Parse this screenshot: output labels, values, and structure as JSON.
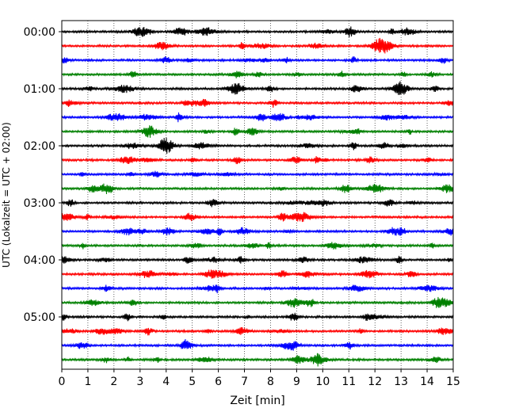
{
  "chart_data": {
    "type": "line",
    "title": "",
    "xlabel": "Zeit  [min]",
    "ylabel": "UTC (Lokalzeit = UTC + 02:00)",
    "xlim": [
      0,
      15
    ],
    "x_ticks": [
      0,
      1,
      2,
      3,
      4,
      5,
      6,
      7,
      8,
      9,
      10,
      11,
      12,
      13,
      14,
      15
    ],
    "x_tick_labels": [
      "0",
      "1",
      "2",
      "3",
      "4",
      "5",
      "6",
      "7",
      "8",
      "9",
      "10",
      "11",
      "12",
      "13",
      "14",
      "15"
    ],
    "y_tick_labels": [
      "00:00",
      "01:00",
      "02:00",
      "03:00",
      "04:00",
      "05:00"
    ],
    "y_tick_rows": [
      0,
      4,
      8,
      12,
      16,
      20
    ],
    "grid": "vertical dotted",
    "trace_colors": [
      "#000000",
      "#ff0000",
      "#0000ff",
      "#008000"
    ],
    "series": [
      {
        "start": "00:00",
        "color": "#000000"
      },
      {
        "start": "00:15",
        "color": "#ff0000"
      },
      {
        "start": "00:30",
        "color": "#0000ff"
      },
      {
        "start": "00:45",
        "color": "#008000"
      },
      {
        "start": "01:00",
        "color": "#000000"
      },
      {
        "start": "01:15",
        "color": "#ff0000"
      },
      {
        "start": "01:30",
        "color": "#0000ff"
      },
      {
        "start": "01:45",
        "color": "#008000"
      },
      {
        "start": "02:00",
        "color": "#000000"
      },
      {
        "start": "02:15",
        "color": "#ff0000"
      },
      {
        "start": "02:30",
        "color": "#0000ff"
      },
      {
        "start": "02:45",
        "color": "#008000"
      },
      {
        "start": "03:00",
        "color": "#000000"
      },
      {
        "start": "03:15",
        "color": "#ff0000"
      },
      {
        "start": "03:30",
        "color": "#0000ff"
      },
      {
        "start": "03:45",
        "color": "#008000"
      },
      {
        "start": "04:00",
        "color": "#000000"
      },
      {
        "start": "04:15",
        "color": "#ff0000"
      },
      {
        "start": "04:30",
        "color": "#0000ff"
      },
      {
        "start": "04:45",
        "color": "#008000"
      },
      {
        "start": "05:00",
        "color": "#000000"
      },
      {
        "start": "05:15",
        "color": "#ff0000"
      },
      {
        "start": "05:30",
        "color": "#0000ff"
      },
      {
        "start": "05:45",
        "color": "#008000"
      }
    ]
  }
}
